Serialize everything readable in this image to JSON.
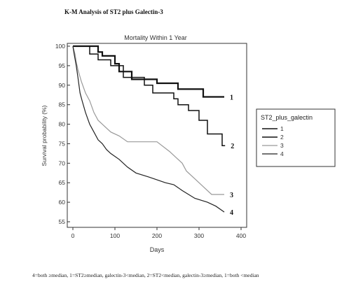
{
  "figure_title": "K-M Analysis of ST2 plus Galectin-3",
  "caption": "4=both ≥median, 1=ST2≥median, galectin-3<median, 2=ST2<median, galectin-3≥median, 1=both <median",
  "chart_data": {
    "type": "line",
    "step": true,
    "title": "Mortality Within 1 Year",
    "xlabel": "Days",
    "ylabel": "Survival probability (%)",
    "xlim": [
      0,
      400
    ],
    "ylim": [
      55,
      100
    ],
    "xticks": [
      0,
      100,
      200,
      300,
      400
    ],
    "yticks": [
      55,
      60,
      65,
      70,
      75,
      80,
      85,
      90,
      95,
      100
    ],
    "grid": false,
    "legend": {
      "title": "ST2_plus_galectin",
      "placement": "right"
    },
    "series": [
      {
        "name": "1",
        "label": "1",
        "color": "#111111",
        "width": 2.2,
        "points": [
          [
            0,
            100
          ],
          [
            60,
            100
          ],
          [
            60,
            98.5
          ],
          [
            70,
            98.5
          ],
          [
            70,
            97.5
          ],
          [
            100,
            97.5
          ],
          [
            100,
            95.5
          ],
          [
            110,
            95.5
          ],
          [
            110,
            93.5
          ],
          [
            140,
            93.5
          ],
          [
            140,
            91.5
          ],
          [
            200,
            91.5
          ],
          [
            200,
            90.5
          ],
          [
            250,
            90.5
          ],
          [
            250,
            89
          ],
          [
            310,
            89
          ],
          [
            310,
            87
          ],
          [
            360,
            87
          ]
        ]
      },
      {
        "name": "2",
        "label": "2",
        "color": "#111111",
        "width": 1.5,
        "points": [
          [
            0,
            100
          ],
          [
            40,
            100
          ],
          [
            40,
            98
          ],
          [
            60,
            98
          ],
          [
            60,
            96.5
          ],
          [
            90,
            96.5
          ],
          [
            90,
            95
          ],
          [
            120,
            95
          ],
          [
            120,
            92
          ],
          [
            170,
            92
          ],
          [
            170,
            90
          ],
          [
            190,
            90
          ],
          [
            190,
            88
          ],
          [
            240,
            88
          ],
          [
            240,
            86.5
          ],
          [
            250,
            86.5
          ],
          [
            250,
            85
          ],
          [
            275,
            85
          ],
          [
            275,
            83.5
          ],
          [
            300,
            83.5
          ],
          [
            300,
            81
          ],
          [
            320,
            81
          ],
          [
            320,
            77.5
          ],
          [
            355,
            77.5
          ],
          [
            355,
            74.5
          ],
          [
            362,
            74.5
          ]
        ]
      },
      {
        "name": "3",
        "label": "3",
        "color": "#999999",
        "width": 1.2,
        "points": [
          [
            0,
            100
          ],
          [
            5,
            98
          ],
          [
            8,
            96
          ],
          [
            12,
            94
          ],
          [
            20,
            91
          ],
          [
            30,
            88
          ],
          [
            40,
            86
          ],
          [
            50,
            83
          ],
          [
            60,
            81
          ],
          [
            70,
            80
          ],
          [
            90,
            78
          ],
          [
            110,
            77
          ],
          [
            130,
            75.5
          ],
          [
            200,
            75.5
          ],
          [
            230,
            73
          ],
          [
            260,
            70
          ],
          [
            270,
            68
          ],
          [
            290,
            66
          ],
          [
            310,
            64
          ],
          [
            330,
            62
          ],
          [
            360,
            62
          ]
        ]
      },
      {
        "name": "4",
        "label": "4",
        "color": "#222222",
        "width": 1.2,
        "points": [
          [
            0,
            100
          ],
          [
            3,
            98
          ],
          [
            8,
            95
          ],
          [
            12,
            92
          ],
          [
            17,
            88
          ],
          [
            22,
            86
          ],
          [
            30,
            83
          ],
          [
            40,
            80
          ],
          [
            50,
            78
          ],
          [
            60,
            76
          ],
          [
            70,
            75
          ],
          [
            80,
            73.5
          ],
          [
            90,
            72.5
          ],
          [
            110,
            71
          ],
          [
            130,
            69
          ],
          [
            150,
            67.5
          ],
          [
            180,
            66.5
          ],
          [
            220,
            65
          ],
          [
            240,
            64.5
          ],
          [
            260,
            63
          ],
          [
            290,
            61
          ],
          [
            320,
            60
          ],
          [
            340,
            59
          ],
          [
            360,
            57.5
          ]
        ]
      }
    ]
  }
}
